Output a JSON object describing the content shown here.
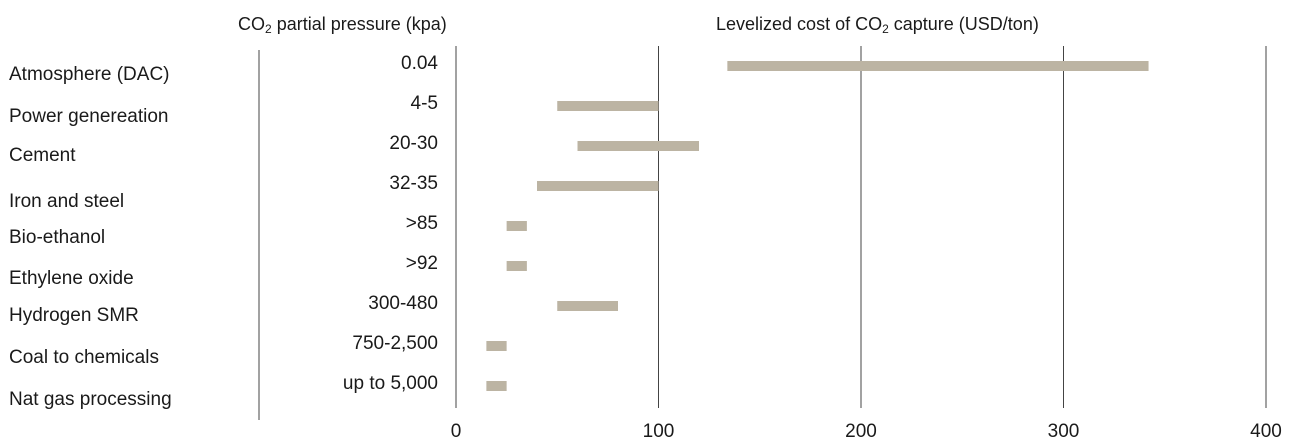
{
  "chart_data": {
    "type": "bar",
    "subtype": "floating-range-bar",
    "headers": {
      "pressure": {
        "prefix": "CO",
        "subscript": "2",
        "suffix": " partial pressure (kpa)"
      },
      "cost": {
        "prefix": "Levelized cost of CO",
        "subscript": "2",
        "suffix": " capture (USD/ton)"
      }
    },
    "xlim": [
      0,
      400
    ],
    "xticks": [
      "0",
      "100",
      "200",
      "300",
      "400"
    ],
    "grid": "vertical",
    "bar_color": "#bcb4a3",
    "categories": [
      {
        "name": "Atmosphere (DAC)",
        "pressure": "0.04",
        "low": 134,
        "high": 342
      },
      {
        "name": "Power genereation",
        "pressure": "4-5",
        "low": 50,
        "high": 100
      },
      {
        "name": "Cement",
        "pressure": "20-30",
        "low": 60,
        "high": 120
      },
      {
        "name": "Iron and steel",
        "pressure": "32-35",
        "low": 40,
        "high": 100
      },
      {
        "name": "Bio-ethanol",
        "pressure": ">85",
        "low": 25,
        "high": 35
      },
      {
        "name": "Ethylene oxide",
        "pressure": ">92",
        "low": 25,
        "high": 35
      },
      {
        "name": "Hydrogen SMR",
        "pressure": "300-480",
        "low": 50,
        "high": 80
      },
      {
        "name": "Coal to chemicals",
        "pressure": "750-2,500",
        "low": 15,
        "high": 25
      },
      {
        "name": "Nat gas processing",
        "pressure": "up to 5,000",
        "low": 15,
        "high": 25
      }
    ]
  }
}
